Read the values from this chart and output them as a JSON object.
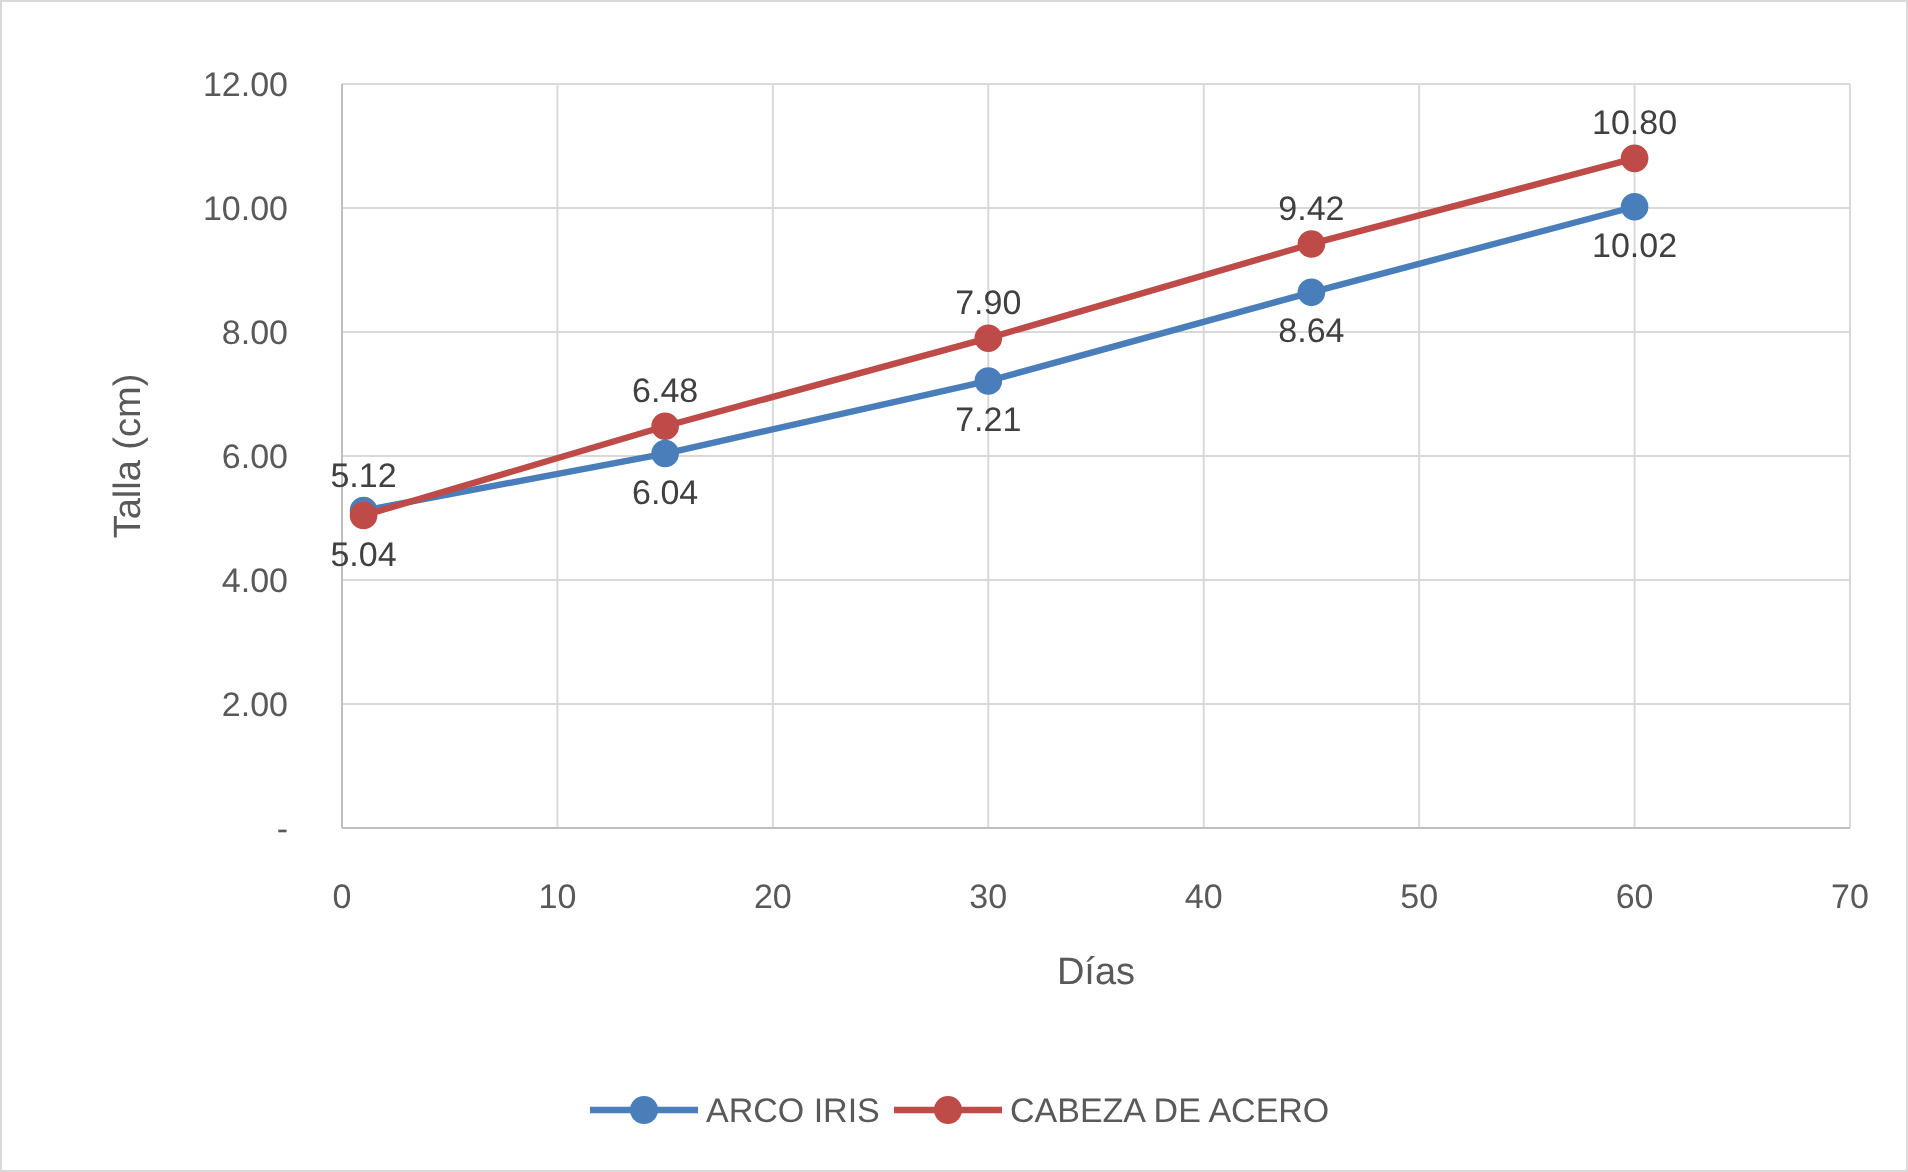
{
  "chart_data": {
    "type": "line",
    "xlabel": "Días",
    "ylabel": "Talla (cm)",
    "x": [
      1,
      15,
      30,
      45,
      60
    ],
    "series": [
      {
        "name": "ARCO IRIS",
        "color": "#4a7ebb",
        "values": [
          5.12,
          6.04,
          7.21,
          8.64,
          10.02
        ],
        "value_labels": [
          "5.12",
          "6.04",
          "7.21",
          "8.64",
          "10.02"
        ]
      },
      {
        "name": "CABEZA DE ACERO",
        "color": "#be4b48",
        "values": [
          5.04,
          6.48,
          7.9,
          9.42,
          10.8
        ],
        "value_labels": [
          "5.04",
          "6.48",
          "7.90",
          "9.42",
          "10.80"
        ]
      }
    ],
    "xlim": [
      0,
      70
    ],
    "xticks": [
      0,
      10,
      20,
      30,
      40,
      50,
      60,
      70
    ],
    "ylim": [
      0,
      12
    ],
    "yticks": [
      {
        "value": 0,
        "label": "-"
      },
      {
        "value": 2,
        "label": "2.00"
      },
      {
        "value": 4,
        "label": "4.00"
      },
      {
        "value": 6,
        "label": "6.00"
      },
      {
        "value": 8,
        "label": "8.00"
      },
      {
        "value": 10,
        "label": "10.00"
      },
      {
        "value": 12,
        "label": "12.00"
      }
    ],
    "grid": true,
    "legend": "bottom",
    "marker": "circle",
    "line_style": "solid"
  }
}
